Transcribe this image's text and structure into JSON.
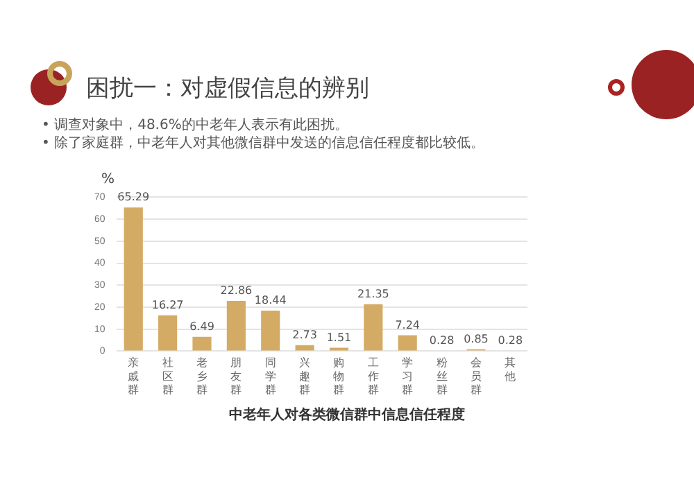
{
  "chart_data": {
    "type": "bar",
    "title": "困扰一：对虚假信息的辨别",
    "annotations": [
      "•  调查对象中，48.6%的中老年人表示有此困扰。",
      "•  除了家庭群，中老年人对其他微信群中发送的信息信任程度都比较低。"
    ],
    "ylabel": "%",
    "xlabel": "中老年人对各类微信群中信息信任程度",
    "categories": [
      "亲戚群",
      "社区群",
      "老乡群",
      "朋友群",
      "同学群",
      "兴趣群",
      "购物群",
      "工作群",
      "学习群",
      "粉丝群",
      "会员群",
      "其他"
    ],
    "values": [
      65.29,
      16.27,
      6.49,
      22.86,
      18.44,
      2.73,
      1.51,
      21.35,
      7.24,
      0.28,
      0.85,
      0.28
    ],
    "color": "#d4ab64",
    "ylim": [
      0,
      70
    ],
    "yticks": [
      0,
      10,
      20,
      30,
      40,
      50,
      60,
      70
    ],
    "grid": "y",
    "data_labels": true
  }
}
